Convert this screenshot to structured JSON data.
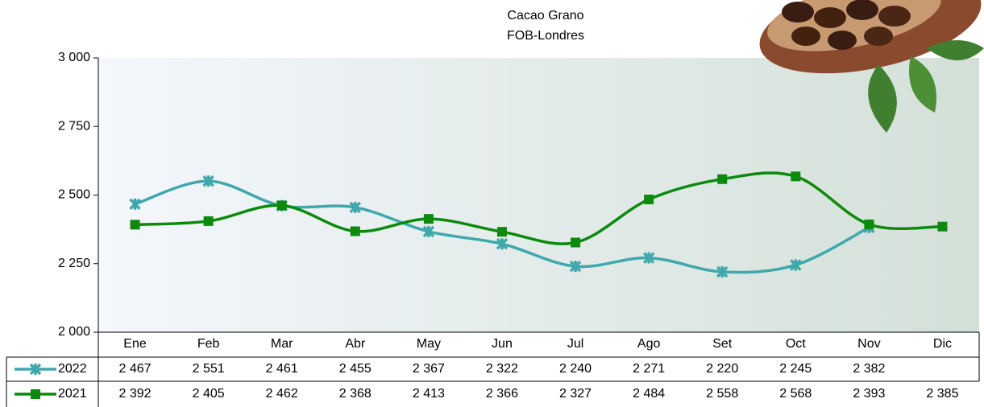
{
  "chart_data": {
    "type": "line",
    "title": "Cacao Grano",
    "subtitle": "FOB-Londres",
    "categories": [
      "Ene",
      "Feb",
      "Mar",
      "Abr",
      "May",
      "Jun",
      "Jul",
      "Ago",
      "Set",
      "Oct",
      "Nov",
      "Dic"
    ],
    "series": [
      {
        "name": "2022",
        "color": "#3ea8ad",
        "marker": "x",
        "values": [
          2467,
          2551,
          2461,
          2455,
          2367,
          2322,
          2240,
          2271,
          2220,
          2245,
          2382,
          null
        ],
        "value_labels": [
          "2 467",
          "2 551",
          "2 461",
          "2 455",
          "2 367",
          "2 322",
          "2 240",
          "2 271",
          "2 220",
          "2 245",
          "2 382",
          null
        ]
      },
      {
        "name": "2021",
        "color": "#0b8a0b",
        "marker": "square",
        "values": [
          2392,
          2405,
          2462,
          2368,
          2413,
          2366,
          2327,
          2484,
          2558,
          2568,
          2393,
          2385
        ],
        "value_labels": [
          "2 392",
          "2 405",
          "2 462",
          "2 368",
          "2 413",
          "2 366",
          "2 327",
          "2 484",
          "2 558",
          "2 568",
          "2 393",
          "2 385"
        ]
      }
    ],
    "ylim": [
      2000,
      3000
    ],
    "yticks": [
      {
        "value": 2000,
        "label": "2 000"
      },
      {
        "value": 2250,
        "label": "2 250"
      },
      {
        "value": 2500,
        "label": "2 500"
      },
      {
        "value": 2750,
        "label": "2 750"
      },
      {
        "value": 3000,
        "label": "3 000"
      }
    ],
    "smooth": true
  }
}
